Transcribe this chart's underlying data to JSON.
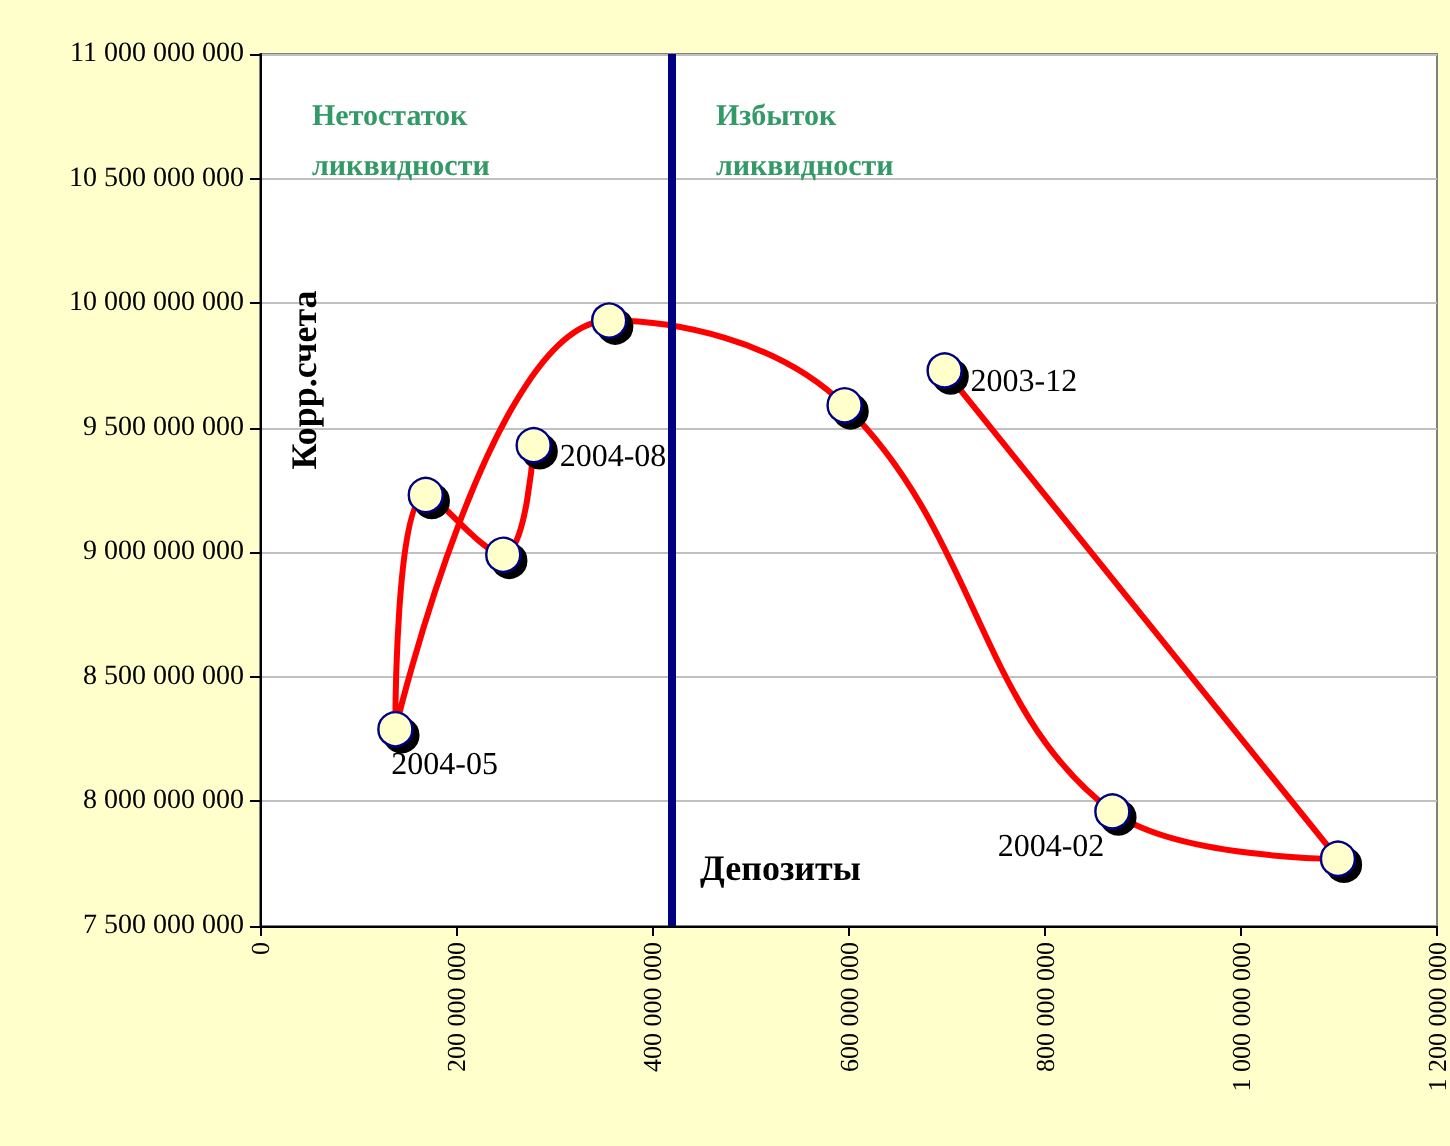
{
  "chart_data": {
    "type": "line",
    "xlabel": "Депозиты",
    "ylabel": "Корр.счета",
    "x": [
      698000000,
      1099000000,
      869000000,
      596000000,
      356000000,
      138000000,
      169000000,
      248000000,
      279000000
    ],
    "values": [
      9730000000,
      7770000000,
      7960000000,
      9590000000,
      9930000000,
      8290000000,
      9230000000,
      8990000000,
      9430000000
    ],
    "color": "#ff0000",
    "marker": "circle",
    "line_style": "solid",
    "grid": "y",
    "xlim": [
      0,
      1200000000
    ],
    "xticks": [
      0,
      200000000,
      400000000,
      600000000,
      800000000,
      1000000000,
      1200000000
    ],
    "ylim": [
      7500000000,
      11000000000
    ],
    "yticks": [
      7500000000,
      8000000000,
      8500000000,
      9000000000,
      9500000000,
      10000000000,
      10500000000,
      11000000000
    ],
    "ref_lines": [
      {
        "axis": "x",
        "value": 420000000,
        "color": "#000080",
        "line_style": "solid"
      }
    ],
    "annotations": [
      "Нетостаток ликвидности",
      "Избыток ликвидности",
      {
        "text": "2003-12",
        "x": 698000000,
        "y": 9730000000
      },
      {
        "text": "2004-02",
        "x": 869000000,
        "y": 7960000000
      },
      {
        "text": "2004-05",
        "x": 138000000,
        "y": 8290000000
      },
      {
        "text": "2004-08",
        "x": 279000000,
        "y": 9430000000
      }
    ]
  }
}
